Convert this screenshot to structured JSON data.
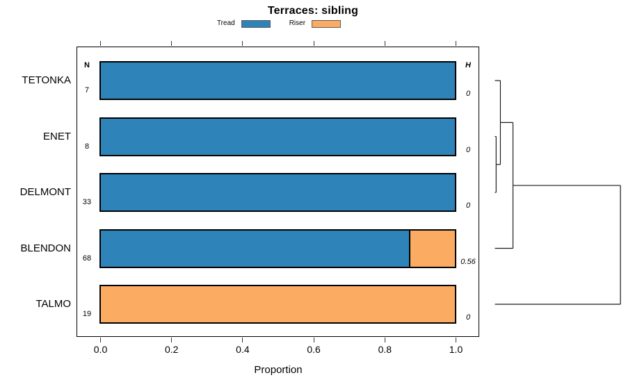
{
  "title": "Terraces: sibling",
  "columns": {
    "n_header": "N",
    "h_header": "H"
  },
  "axis": {
    "label": "Proportion",
    "ticks": [
      "0.0",
      "0.2",
      "0.4",
      "0.6",
      "0.8",
      "1.0"
    ],
    "min": 0,
    "max": 1
  },
  "chart_data": {
    "type": "bar",
    "orientation": "horizontal-stacked",
    "title": "Terraces: sibling",
    "xlabel": "Proportion",
    "xlim": [
      0,
      1
    ],
    "categories": [
      "TETONKA",
      "ENET",
      "DELMONT",
      "BLENDON",
      "TALMO"
    ],
    "n_values": [
      7,
      8,
      33,
      68,
      19
    ],
    "h_values": [
      "0",
      "0",
      "0",
      "0.56",
      "0"
    ],
    "series": [
      {
        "name": "Tread",
        "color": "#2E83B8",
        "values": [
          1,
          1,
          1,
          0.87,
          0
        ]
      },
      {
        "name": "Riser",
        "color": "#FBAC62",
        "values": [
          0,
          0,
          0,
          0.13,
          1
        ]
      }
    ],
    "legend_position": "top",
    "grid": false,
    "dendrogram": {
      "leaves": [
        "TETONKA",
        "ENET",
        "DELMONT",
        "BLENDON",
        "TALMO"
      ],
      "merges": [
        {
          "a": {
            "leaf": 1
          },
          "b": {
            "leaf": 2
          },
          "h": 0.01
        },
        {
          "a": {
            "leaf": 0
          },
          "b": {
            "merge": 0
          },
          "h": 0.044
        },
        {
          "a": {
            "merge": 1
          },
          "b": {
            "leaf": 3
          },
          "h": 0.144
        },
        {
          "a": {
            "merge": 2
          },
          "b": {
            "leaf": 4
          },
          "h": 1.0
        }
      ]
    }
  }
}
